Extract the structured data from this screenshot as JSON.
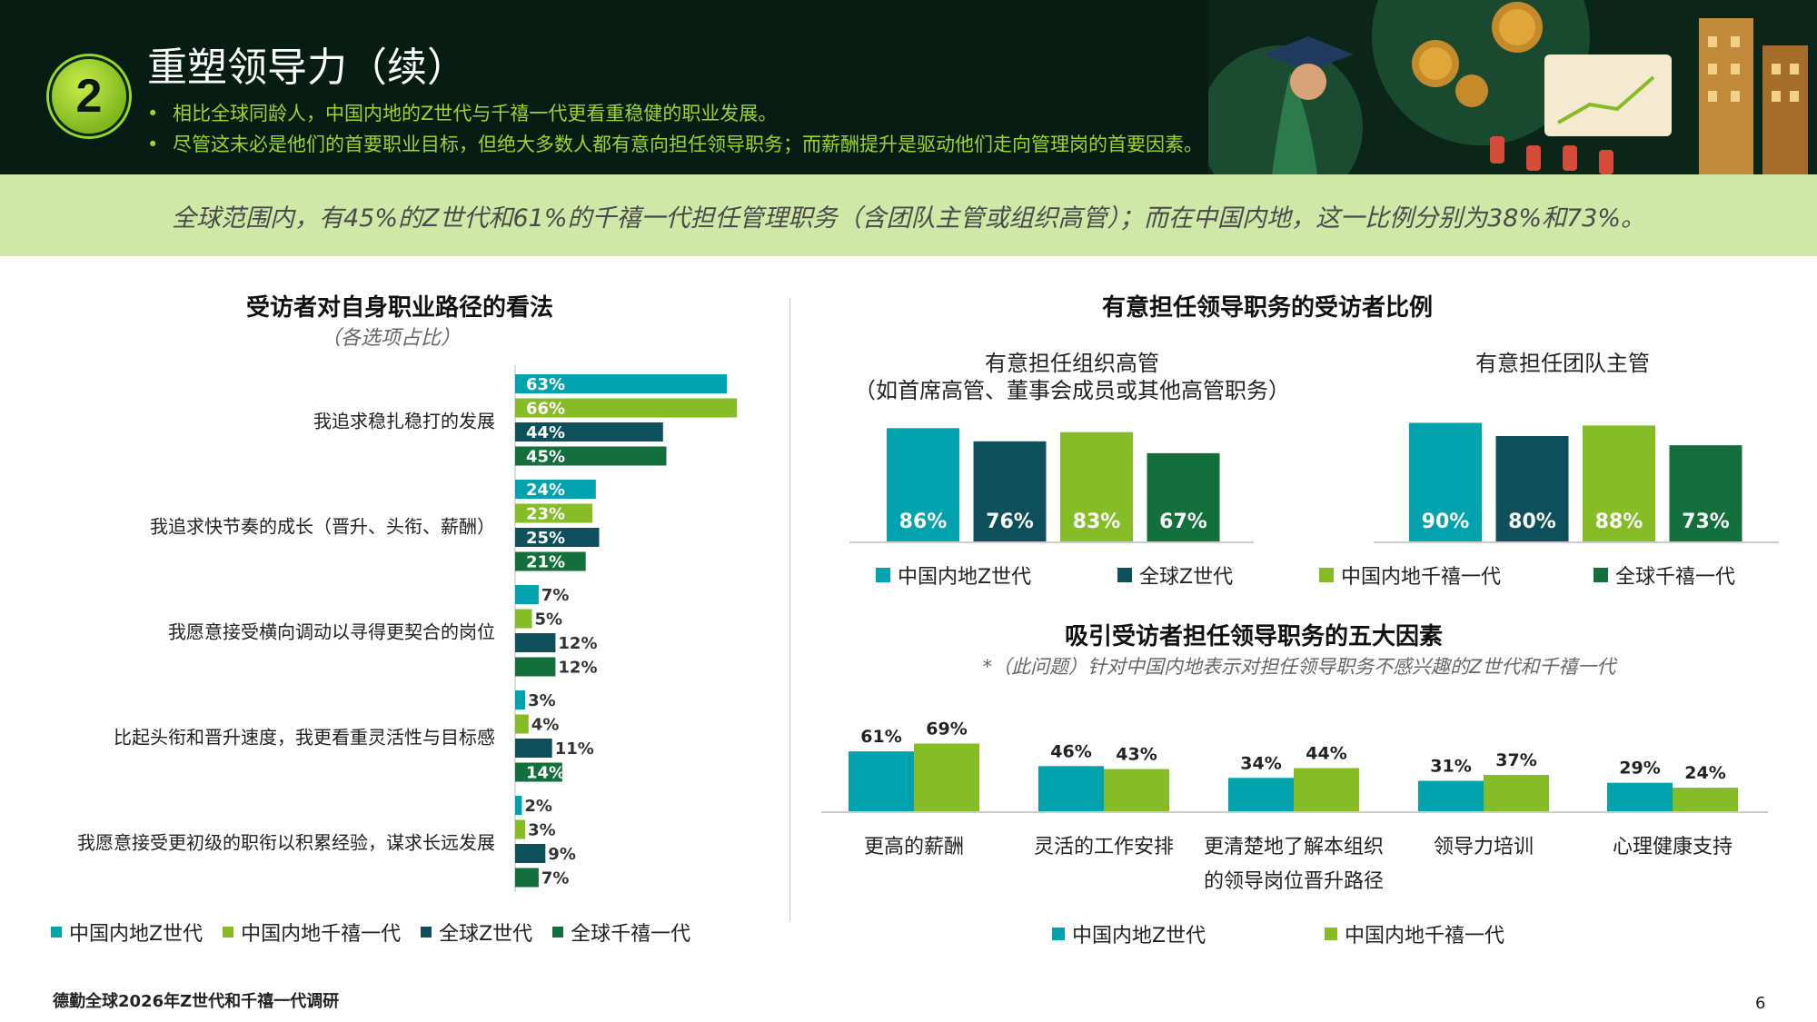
{
  "header": {
    "section_number": "2",
    "title": "重塑领导力（续）",
    "bullets": [
      "相比全球同龄人，中国内地的Z世代与千禧一代更看重稳健的职业发展。",
      "尽管这未必是他们的首要职业目标，但绝大多数人都有意向担任领导职务；而薪酬提升是驱动他们走向管理岗的首要因素。"
    ]
  },
  "banner": {
    "text": "全球范围内，有45%的Z世代和61%的千禧一代担任管理职务（含团队主管或组织高管）；而在中国内地，这一比例分别为38%和73%。"
  },
  "colors": {
    "china_genz": "#00a3ad",
    "china_millennial": "#86bc25",
    "global_genz": "#0d4f5a",
    "global_millennial": "#136f3c"
  },
  "chart_data": [
    {
      "id": "career-path",
      "type": "bar",
      "orientation": "horizontal",
      "title": "受访者对自身职业路径的看法",
      "subtitle": "（各选项占比）",
      "categories": [
        "我追求稳扎稳打的发展",
        "我追求快节奏的成长（晋升、头衔、薪酬）",
        "我愿意接受横向调动以寻得更契合的岗位",
        "比起头衔和晋升速度，我更看重灵活性与目标感",
        "我愿意接受更初级的职衔以积累经验，谋求长远发展"
      ],
      "series": [
        {
          "name": "中国内地Z世代",
          "values": [
            63,
            24,
            7,
            3,
            2
          ]
        },
        {
          "name": "中国内地千禧一代",
          "values": [
            66,
            23,
            5,
            4,
            3
          ]
        },
        {
          "name": "全球Z世代",
          "values": [
            44,
            25,
            12,
            11,
            9
          ]
        },
        {
          "name": "全球千禧一代",
          "values": [
            45,
            21,
            12,
            14,
            7
          ]
        }
      ],
      "unit": "%",
      "legend_position": "bottom"
    },
    {
      "id": "leadership-intent",
      "type": "bar",
      "title": "有意担任领导职务的受访者比例",
      "groups": [
        {
          "title_lines": [
            "有意担任组织高管",
            "（如首席高管、董事会成员或其他高管职务）"
          ],
          "values": [
            86,
            76,
            83,
            67
          ]
        },
        {
          "title_lines": [
            "有意担任团队主管"
          ],
          "values": [
            90,
            80,
            88,
            73
          ]
        }
      ],
      "series_names": [
        "中国内地Z世代",
        "全球Z世代",
        "中国内地千禧一代",
        "全球千禧一代"
      ],
      "unit": "%",
      "legend_position": "bottom"
    },
    {
      "id": "top-factors",
      "type": "bar",
      "title": "吸引受访者担任领导职务的五大因素",
      "subtitle": "*（此问题）针对中国内地表示对担任领导职务不感兴趣的Z世代和千禧一代",
      "categories": [
        "更高的薪酬",
        "灵活的工作安排",
        "更清楚地了解本组织的领导岗位晋升路径",
        "领导力培训",
        "心理健康支持"
      ],
      "category_lines": [
        [
          "更高的薪酬"
        ],
        [
          "灵活的工作安排"
        ],
        [
          "更清楚地了解本组织",
          "的领导岗位晋升路径"
        ],
        [
          "领导力培训"
        ],
        [
          "心理健康支持"
        ]
      ],
      "series": [
        {
          "name": "中国内地Z世代",
          "values": [
            61,
            46,
            34,
            31,
            29
          ]
        },
        {
          "name": "中国内地千禧一代",
          "values": [
            69,
            43,
            44,
            37,
            24
          ]
        }
      ],
      "unit": "%",
      "legend_position": "bottom"
    }
  ],
  "legends": {
    "left": [
      "中国内地Z世代",
      "中国内地千禧一代",
      "全球Z世代",
      "全球千禧一代"
    ],
    "mid": [
      "中国内地Z世代",
      "全球Z世代",
      "中国内地千禧一代",
      "全球千禧一代"
    ],
    "bottom": [
      "中国内地Z世代",
      "中国内地千禧一代"
    ]
  },
  "footer": {
    "source": "德勤全球2026年Z世代和千禧一代调研",
    "page": "6"
  }
}
